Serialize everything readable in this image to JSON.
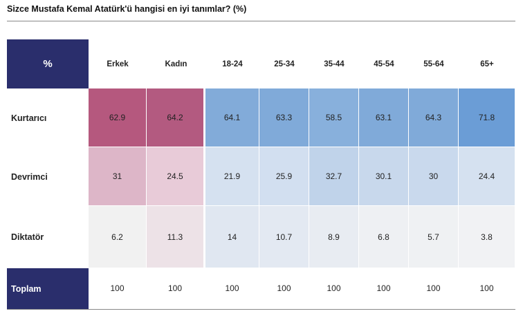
{
  "title": "Sizce Mustafa Kemal Atatürk'ü hangisi en iyi tanımlar? (%)",
  "table": {
    "corner": "%",
    "columns": [
      "Erkek",
      "Kadın",
      "18-24",
      "25-34",
      "35-44",
      "45-54",
      "55-64",
      "65+"
    ],
    "rows": [
      {
        "label": "Kurtarıcı",
        "cells": [
          62.9,
          64.2,
          64.1,
          63.3,
          58.5,
          63.1,
          64.3,
          71.8
        ]
      },
      {
        "label": "Devrimci",
        "cells": [
          31,
          24.5,
          21.9,
          25.9,
          32.7,
          30.1,
          30,
          24.4
        ]
      },
      {
        "label": "Diktatör",
        "cells": [
          6.2,
          11.3,
          14,
          10.7,
          8.9,
          6.8,
          5.7,
          3.8
        ]
      },
      {
        "label": "Toplam",
        "cells": [
          100,
          100,
          100,
          100,
          100,
          100,
          100,
          100
        ]
      }
    ]
  }
}
